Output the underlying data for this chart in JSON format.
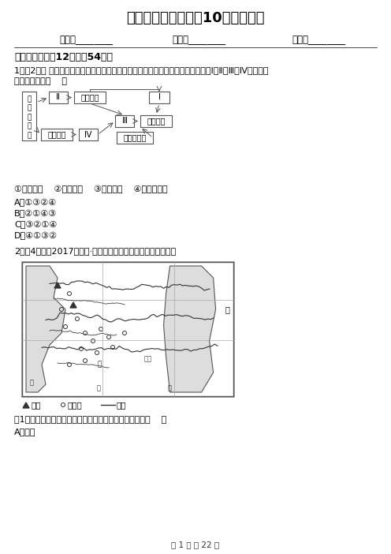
{
  "title": "新疆高二上学期地理10月月考试卷",
  "field1": "姓名：________",
  "field2": "班级：________",
  "field3": "成绩：________",
  "section1": "一、单选题（共12题；共54分）",
  "q1_line1": "1．（2分） 南方低山丘陵区是我国仅次于黄土高原的第二大水土流失区。图方框中Ⅰ、Ⅱ、Ⅲ、Ⅳ相应内容",
  "q1_line2": "排序正确的是（    ）",
  "q1_opts": "①耕地紧张    ②乱砍滥伐    ③植被破坏    ④地形起伏大",
  "q1_A": "A．①③②④",
  "q1_B": "B．②①④③",
  "q1_C": "C．③②①④",
  "q1_D": "D．④①③②",
  "q2_line1": "2．（4分）（2017高一下·天津期末）读下图，完成下列问题。",
  "map_legend": "\\水库    o抽水井    ～河流",
  "q2_sub1": "（1）从图中的信息看，为保障农业稳产，改良的因素是（    ）",
  "q2_A": "A．地形",
  "footer": "第 1 页 共 22 页",
  "bg": "#ffffff"
}
